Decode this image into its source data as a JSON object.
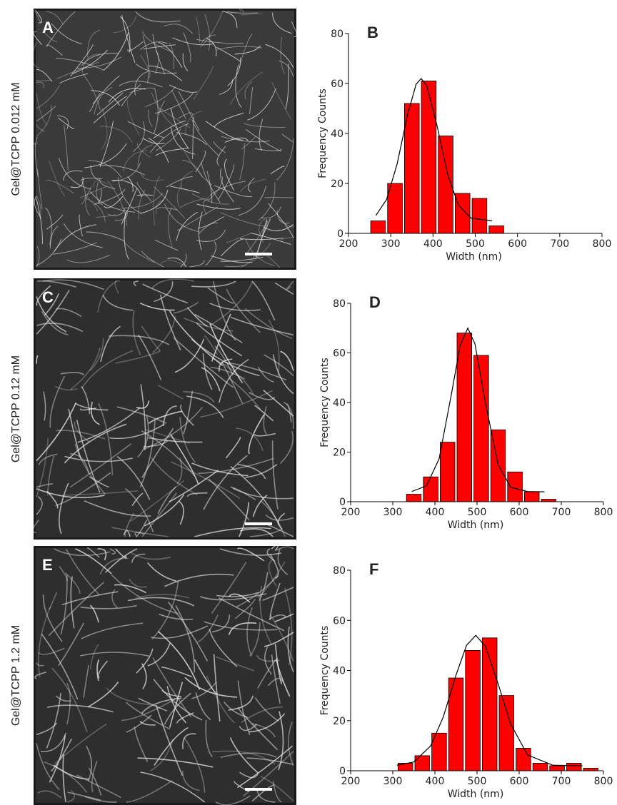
{
  "panels": [
    {
      "letter": "A",
      "label": "Gel@TCPP 0.012 mM"
    },
    {
      "letter": "C",
      "label": "Gel@TCPP 0.12 mM"
    },
    {
      "letter": "E",
      "label": "Gel@TCPP 1.2 mM"
    }
  ],
  "chart_data": [
    {
      "type": "histogram",
      "title": "B",
      "x_label": "Width (nm)",
      "y_label": "Frequency Counts",
      "color": "#ff0000",
      "bins": [
        250,
        290,
        330,
        370,
        410,
        450,
        490,
        530,
        570
      ],
      "values": [
        5,
        20,
        52,
        61,
        39,
        16,
        14,
        3
      ],
      "fit": {
        "color": "#000000",
        "x": [
          265,
          290,
          315,
          340,
          360,
          372,
          385,
          410,
          435,
          460,
          490,
          540
        ],
        "values": [
          7.2,
          13.5,
          27.7,
          47.6,
          59.7,
          62,
          59.3,
          42.8,
          23.5,
          11.3,
          6.1,
          5.0
        ]
      },
      "xlim": [
        200,
        800
      ],
      "xticks": [
        200,
        300,
        400,
        500,
        600,
        700,
        800
      ],
      "ylim": [
        0,
        80
      ],
      "yticks": [
        0,
        20,
        40,
        60,
        80
      ]
    },
    {
      "type": "histogram",
      "title": "D",
      "x_label": "Width (nm)",
      "y_label": "Frequency Counts",
      "color": "#ff0000",
      "bins": [
        330,
        370,
        410,
        450,
        490,
        530,
        570,
        610,
        650,
        690
      ],
      "values": [
        3,
        10,
        24,
        68,
        59,
        29,
        12,
        4,
        1
      ],
      "fit": {
        "color": "#000000",
        "x": [
          345,
          380,
          410,
          440,
          460,
          478,
          495,
          520,
          550,
          580,
          620,
          660
        ],
        "values": [
          4.1,
          6.4,
          17.3,
          44.1,
          63,
          70,
          63.7,
          39.8,
          15,
          5.8,
          4.1,
          4
        ]
      },
      "xlim": [
        200,
        800
      ],
      "xticks": [
        200,
        300,
        400,
        500,
        600,
        700,
        800
      ],
      "ylim": [
        0,
        80
      ],
      "yticks": [
        0,
        20,
        40,
        60,
        80
      ]
    },
    {
      "type": "histogram",
      "title": "F",
      "x_label": "Width (nm)",
      "y_label": "Frequency Counts",
      "color": "#ff0000",
      "bins": [
        310,
        350,
        390,
        430,
        470,
        510,
        550,
        590,
        630,
        670,
        710,
        750,
        790
      ],
      "values": [
        3,
        6,
        15,
        37,
        48,
        53,
        30,
        9,
        3,
        2,
        3,
        1
      ],
      "fit": {
        "color": "#000000",
        "x": [
          310,
          350,
          390,
          420,
          450,
          475,
          497,
          520,
          550,
          580,
          620,
          680,
          750
        ],
        "values": [
          2.2,
          3.5,
          9.9,
          21.5,
          38.1,
          50,
          54,
          49.7,
          34.7,
          18.6,
          6.3,
          2.2,
          2
        ]
      },
      "xlim": [
        200,
        800
      ],
      "xticks": [
        200,
        300,
        400,
        500,
        600,
        700,
        800
      ],
      "ylim": [
        0,
        80
      ],
      "yticks": [
        0,
        20,
        40,
        60,
        80
      ]
    }
  ]
}
